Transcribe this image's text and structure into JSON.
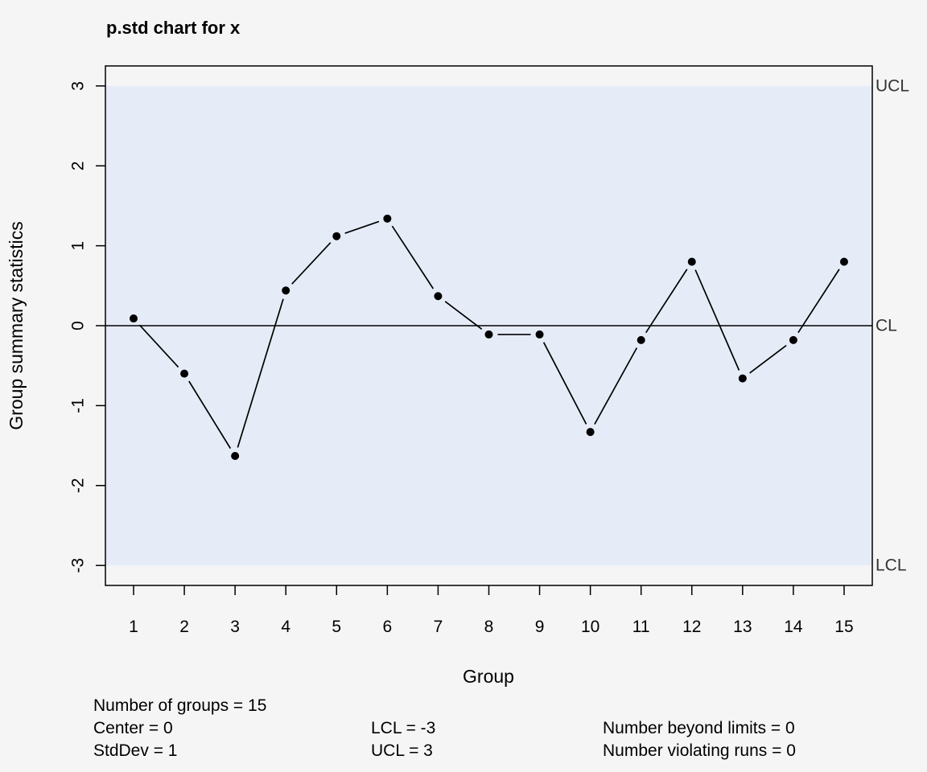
{
  "chart_data": {
    "type": "line",
    "title": "p.std chart for x",
    "xlabel": "Group",
    "ylabel": "Group summary statistics",
    "categories": [
      "1",
      "2",
      "3",
      "4",
      "5",
      "6",
      "7",
      "8",
      "9",
      "10",
      "11",
      "12",
      "13",
      "14",
      "15"
    ],
    "values": [
      0.09,
      -0.6,
      -1.63,
      0.44,
      1.12,
      1.34,
      0.37,
      -0.11,
      -0.11,
      -1.33,
      -0.18,
      0.8,
      -0.66,
      -0.18,
      0.8
    ],
    "ylim": [
      -3.25,
      3.25
    ],
    "y_ticks": [
      "-3",
      "-2",
      "-1",
      "0",
      "1",
      "2",
      "3"
    ],
    "center": 0,
    "lcl": -3,
    "ucl": 3,
    "limit_labels": {
      "ucl": "UCL",
      "cl": "CL",
      "lcl": "LCL"
    },
    "control_band_color": "#e6ecf7",
    "line_color": "#000000",
    "background_color": "#f5f5f5"
  },
  "stats": {
    "number_of_groups": "Number of groups = 15",
    "center": "Center = 0",
    "stddev": "StdDev = 1",
    "lcl": "LCL = -3",
    "ucl": "UCL = 3",
    "beyond_limits": "Number beyond limits = 0",
    "violating_runs": "Number violating runs = 0"
  }
}
